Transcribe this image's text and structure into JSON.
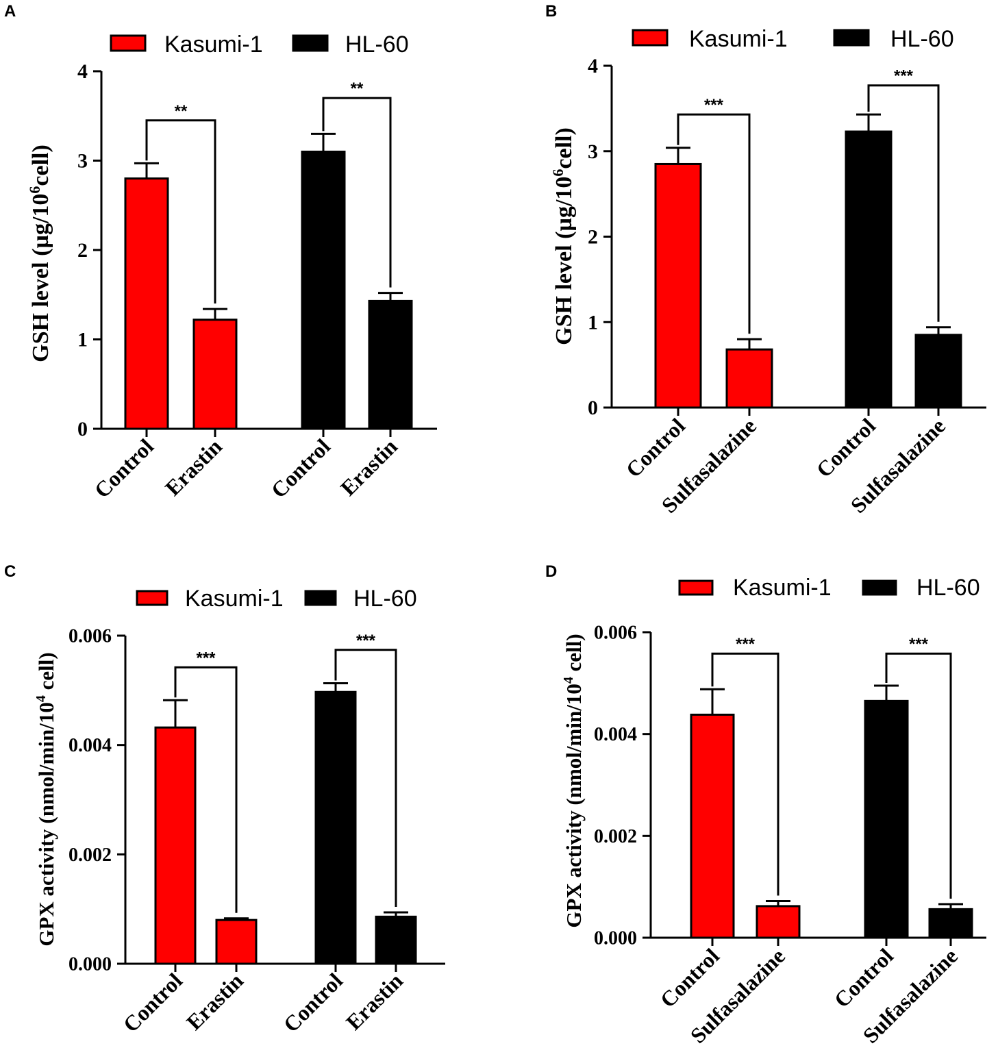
{
  "legend": {
    "kasumi_label": "Kasumi-1",
    "hl60_label": "HL-60"
  },
  "colors": {
    "kasumi": "#ff0000",
    "hl60": "#000000",
    "axis": "#000000"
  },
  "chart_data": [
    {
      "panel": "A",
      "type": "bar",
      "ylabel_prefix": "GSH level (µg/10",
      "ylabel_sup": "6",
      "ylabel_suffix": "cell)",
      "ylim": [
        0,
        4
      ],
      "yticks": [
        "0",
        "1",
        "2",
        "3",
        "4"
      ],
      "yticks_values": [
        0,
        1,
        2,
        3,
        4
      ],
      "categories": [
        "Control",
        "Erastin",
        "Control",
        "Erastin"
      ],
      "groups": [
        "Kasumi-1",
        "Kasumi-1",
        "HL-60",
        "HL-60"
      ],
      "values": [
        2.8,
        1.22,
        3.1,
        1.43
      ],
      "errors": [
        0.17,
        0.12,
        0.2,
        0.09
      ],
      "significance": [
        {
          "bars": [
            0,
            1
          ],
          "label": "**",
          "y": 3.45
        },
        {
          "bars": [
            2,
            3
          ],
          "label": "**",
          "y": 3.7
        }
      ]
    },
    {
      "panel": "B",
      "type": "bar",
      "ylabel_prefix": "GSH level (µg/10",
      "ylabel_sup": "6",
      "ylabel_suffix": "cell)",
      "ylim": [
        0,
        4
      ],
      "yticks": [
        "0",
        "1",
        "2",
        "3",
        "4"
      ],
      "yticks_values": [
        0,
        1,
        2,
        3,
        4
      ],
      "categories": [
        "Control",
        "Sulfasalazine",
        "Control",
        "Sulfasalazine"
      ],
      "groups": [
        "Kasumi-1",
        "Kasumi-1",
        "HL-60",
        "HL-60"
      ],
      "values": [
        2.85,
        0.68,
        3.23,
        0.85
      ],
      "errors": [
        0.19,
        0.12,
        0.2,
        0.09
      ],
      "significance": [
        {
          "bars": [
            0,
            1
          ],
          "label": "***",
          "y": 3.43
        },
        {
          "bars": [
            2,
            3
          ],
          "label": "***",
          "y": 3.77
        }
      ]
    },
    {
      "panel": "C",
      "type": "bar",
      "ylabel_prefix": "GPX activity (nmol/min/10",
      "ylabel_sup": "4",
      "ylabel_suffix": " cell)",
      "ylim": [
        0,
        0.006
      ],
      "yticks": [
        "0.000",
        "0.002",
        "0.004",
        "0.006"
      ],
      "yticks_values": [
        0,
        0.002,
        0.004,
        0.006
      ],
      "categories": [
        "Control",
        "Erastin",
        "Control",
        "Erastin"
      ],
      "groups": [
        "Kasumi-1",
        "Kasumi-1",
        "HL-60",
        "HL-60"
      ],
      "values": [
        0.00432,
        0.0008,
        0.00497,
        0.00086
      ],
      "errors": [
        0.0005,
        3e-05,
        0.00016,
        8e-05
      ],
      "significance": [
        {
          "bars": [
            0,
            1
          ],
          "label": "***",
          "y": 0.00542
        },
        {
          "bars": [
            2,
            3
          ],
          "label": "***",
          "y": 0.00574
        }
      ]
    },
    {
      "panel": "D",
      "type": "bar",
      "ylabel_prefix": "GPX activity (nmol/min/10",
      "ylabel_sup": "4",
      "ylabel_suffix": " cell)",
      "ylim": [
        0,
        0.006
      ],
      "yticks": [
        "0.000",
        "0.002",
        "0.004",
        "0.006"
      ],
      "yticks_values": [
        0,
        0.002,
        0.004,
        0.006
      ],
      "categories": [
        "Control",
        "Sulfasalazine",
        "Control",
        "Sulfasalazine"
      ],
      "groups": [
        "Kasumi-1",
        "Kasumi-1",
        "HL-60",
        "HL-60"
      ],
      "values": [
        0.00438,
        0.00062,
        0.00465,
        0.00056
      ],
      "errors": [
        0.0005,
        0.0001,
        0.0003,
        0.0001
      ],
      "significance": [
        {
          "bars": [
            0,
            1
          ],
          "label": "***",
          "y": 0.00558
        },
        {
          "bars": [
            2,
            3
          ],
          "label": "***",
          "y": 0.00558
        }
      ]
    }
  ]
}
